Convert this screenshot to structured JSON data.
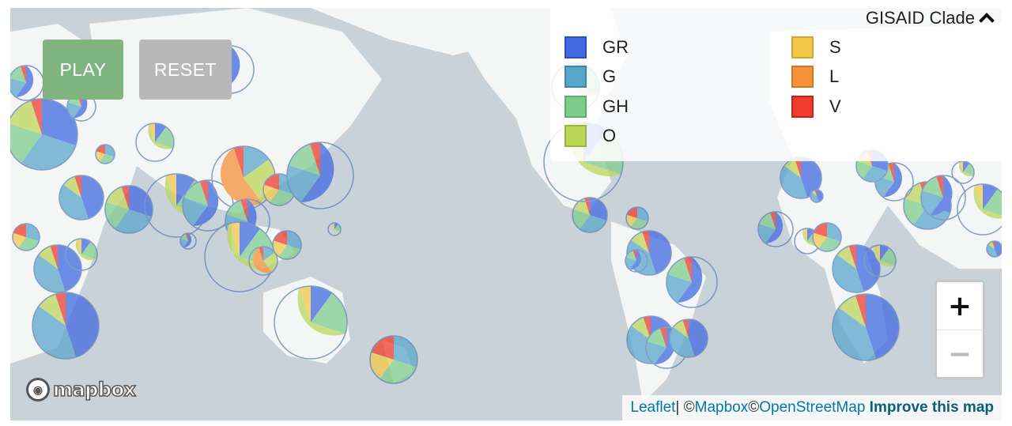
{
  "controls": {
    "play_label": "PLAY",
    "reset_label": "RESET"
  },
  "legend": {
    "title": "GISAID Clade",
    "items": [
      {
        "label": "GR",
        "fill": "#4169e1",
        "border": "#2f4fb8"
      },
      {
        "label": "G",
        "fill": "#5aa6cb",
        "border": "#3e85a8"
      },
      {
        "label": "GH",
        "fill": "#7fcc8c",
        "border": "#5fad6d"
      },
      {
        "label": "O",
        "fill": "#bcd65a",
        "border": "#9cb43c"
      },
      {
        "label": "S",
        "fill": "#f2c84b",
        "border": "#d0a630"
      },
      {
        "label": "L",
        "fill": "#f5923a",
        "border": "#d47320"
      },
      {
        "label": "V",
        "fill": "#ef3b2c",
        "border": "#c42418"
      }
    ]
  },
  "zoom": {
    "in_label": "+",
    "out_label": "−"
  },
  "branding": {
    "mapbox_text": "mapbox"
  },
  "attribution": {
    "leaflet": "Leaflet",
    "sep": " | © ",
    "mapbox": "Mapbox",
    "copy": " © ",
    "osm": "OpenStreetMap",
    "improve": "Improve this map"
  }
}
